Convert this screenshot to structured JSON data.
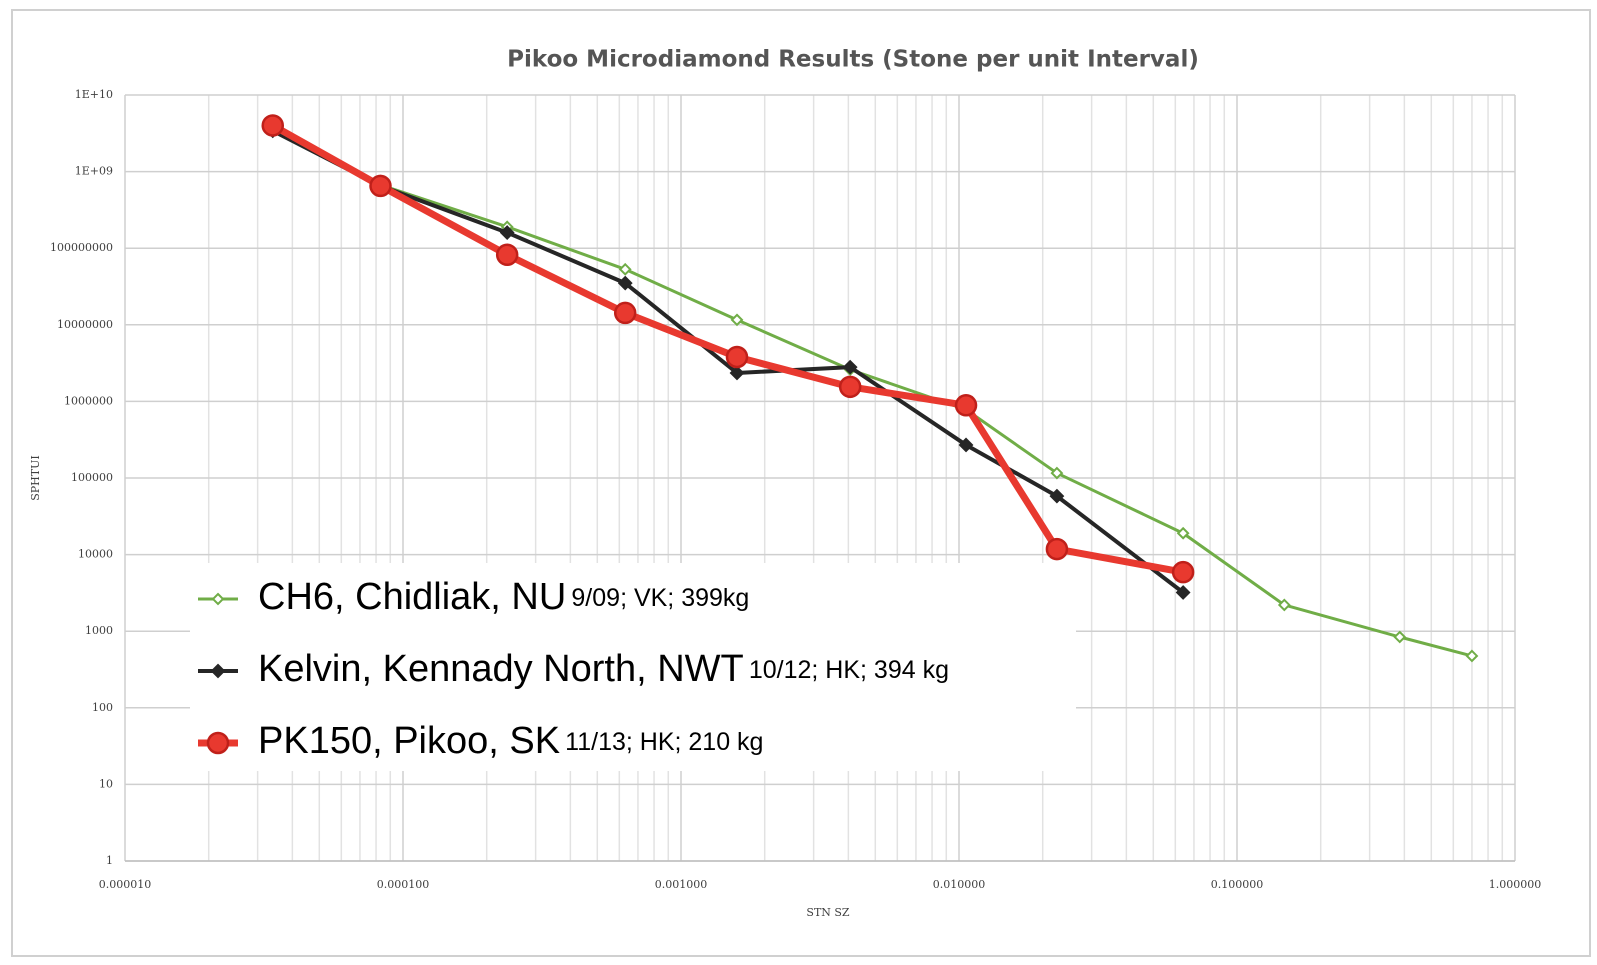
{
  "chart_data": {
    "type": "line",
    "title": "Pikoo Microdiamond Results (Stone per unit Interval)",
    "x_label": "STN SZ",
    "y_label": "SPHTUI",
    "x": [
      3.4e-05,
      8.3e-05,
      0.000237,
      0.00063,
      0.00159,
      0.00406,
      0.0106,
      0.0225,
      0.064,
      0.148,
      0.385,
      0.7
    ],
    "series": [
      {
        "name": "CH6, Chidliak, NU",
        "details": "9/09; VK; 399kg",
        "color": "#70ad47",
        "marker": "diamond",
        "values": [
          null,
          670000000,
          190000000,
          53000000,
          11600000,
          2600000,
          780000,
          116000,
          19000,
          2200,
          840,
          475
        ]
      },
      {
        "name": "Kelvin, Kennady North, NWT",
        "details": "10/12; HK; 394 kg",
        "color": "#262626",
        "marker": "diamond",
        "values": [
          3400000000,
          650000000,
          160000000,
          35000000,
          2350000,
          2800000,
          270000,
          58000,
          3200,
          null,
          null,
          null
        ]
      },
      {
        "name": "PK150, Pikoo, SK",
        "details": "11/13; HK; 210 kg",
        "color": "#e8392f",
        "marker": "circle",
        "values": [
          4000000000,
          650000000,
          82000000,
          14300000,
          3800000,
          1550000,
          890000,
          11800,
          5900,
          null,
          null,
          null
        ]
      }
    ],
    "xlim": [
      1e-05,
      1
    ],
    "xticks": [
      {
        "value": 1e-05,
        "label": "0.000010"
      },
      {
        "value": 0.0001,
        "label": "0.000100"
      },
      {
        "value": 0.001,
        "label": "0.001000"
      },
      {
        "value": 0.01,
        "label": "0.010000"
      },
      {
        "value": 0.1,
        "label": "0.100000"
      },
      {
        "value": 1,
        "label": "1.000000"
      }
    ],
    "ylim": [
      1,
      10000000000
    ],
    "yticks": [
      1,
      10,
      100,
      1000,
      10000,
      100000,
      1000000,
      10000000,
      100000000,
      {
        "value": 1000000000,
        "label": "1E+09"
      },
      {
        "value": 10000000000,
        "label": "1E+10"
      }
    ],
    "x_log": true,
    "y_log": true,
    "grid": true,
    "minor_grid": true,
    "legend": "lower left"
  }
}
